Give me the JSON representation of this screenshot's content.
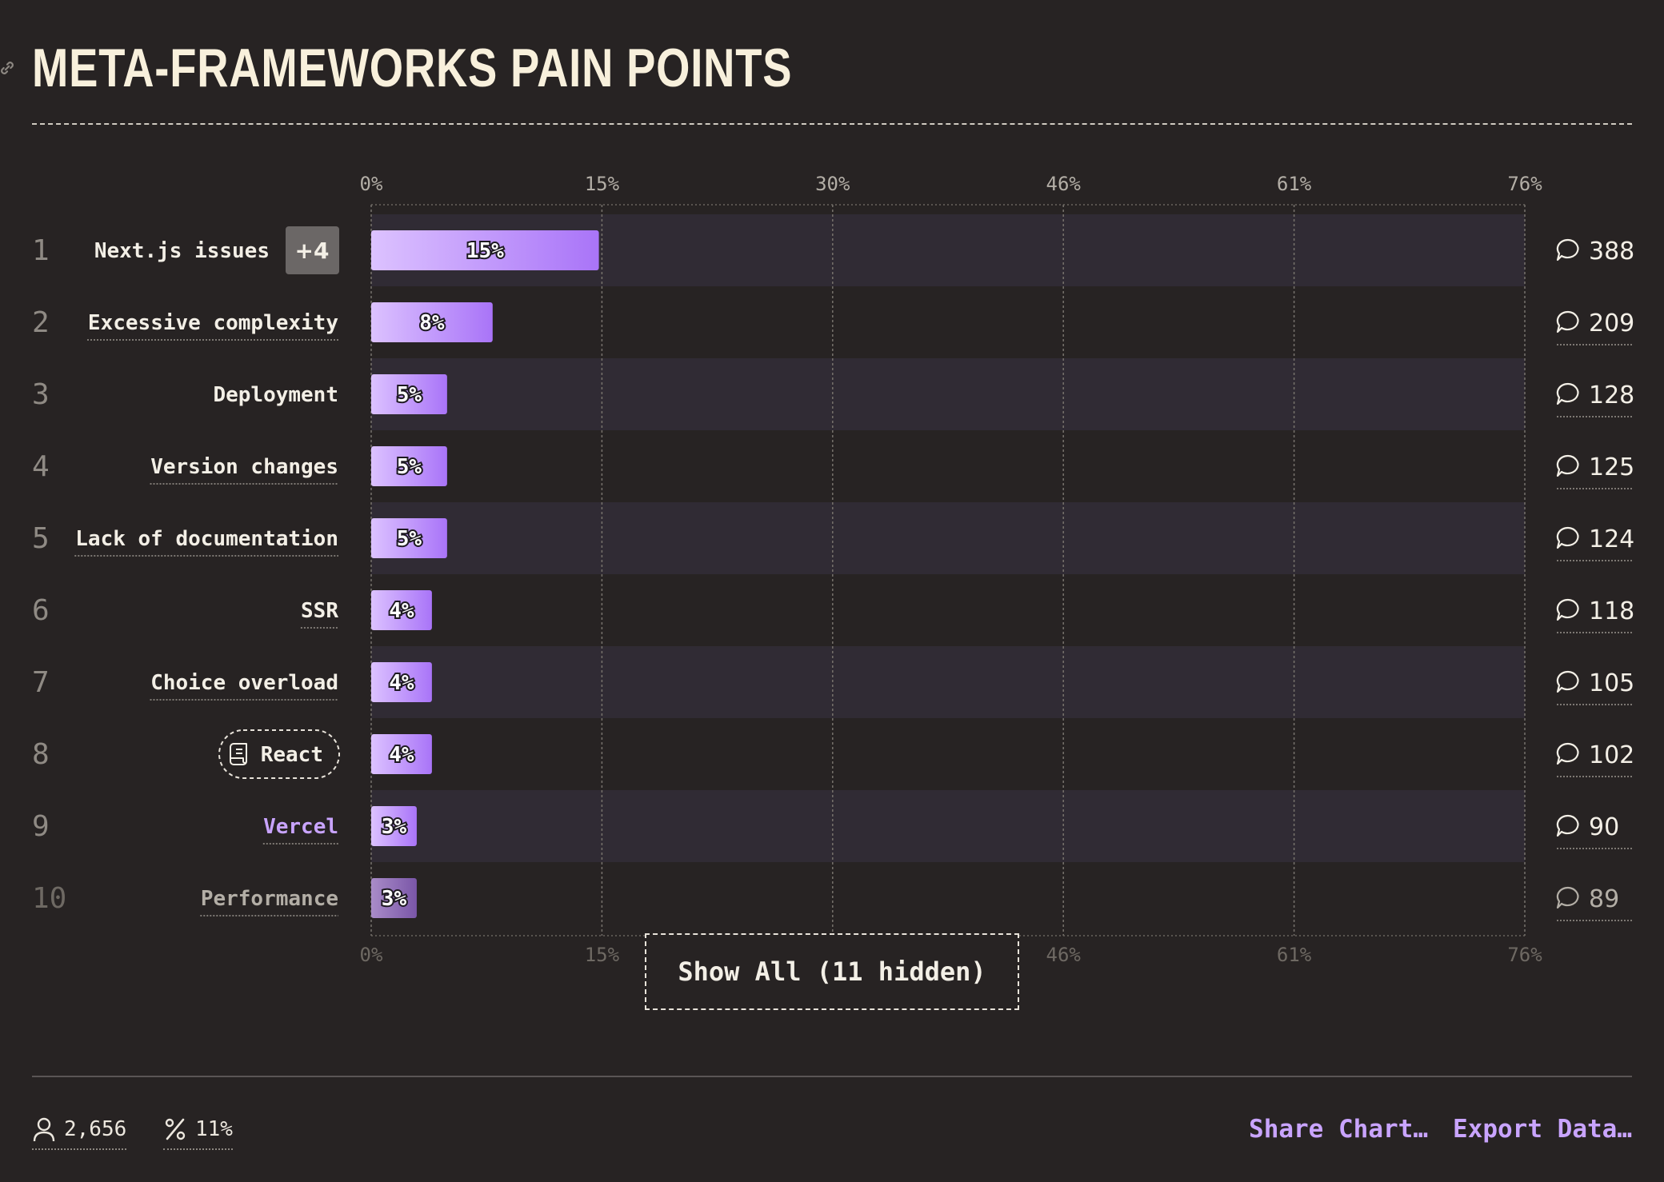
{
  "title": "META-FRAMEWORKS PAIN POINTS",
  "show_all_label": "Show All (11 hidden)",
  "footer": {
    "respondents": "2,656",
    "percent": "11%",
    "share_label": "Share Chart…",
    "export_label": "Export Data…"
  },
  "colors": {
    "background": "#272323",
    "row_stripe": "#302b34",
    "bar_start": "#dcc2ff",
    "bar_end": "#a974f8",
    "accent": "#c9a4ff"
  },
  "chart_data": {
    "type": "bar",
    "orientation": "horizontal",
    "title": "META-FRAMEWORKS PAIN POINTS",
    "x_ticks": [
      "0%",
      "15%",
      "30%",
      "46%",
      "61%",
      "76%"
    ],
    "xlim": [
      0,
      76
    ],
    "grid": true,
    "categories": [
      {
        "rank": "1",
        "label": "Next.js issues",
        "badge": "+4",
        "style": "badge",
        "value": 15,
        "value_label": "15%",
        "comments": "388"
      },
      {
        "rank": "2",
        "label": "Excessive complexity",
        "style": "underline",
        "value": 8,
        "value_label": "8%",
        "comments": "209"
      },
      {
        "rank": "3",
        "label": "Deployment",
        "style": "plain",
        "value": 5,
        "value_label": "5%",
        "comments": "128"
      },
      {
        "rank": "4",
        "label": "Version changes",
        "style": "underline",
        "value": 5,
        "value_label": "5%",
        "comments": "125"
      },
      {
        "rank": "5",
        "label": "Lack of documentation",
        "style": "underline",
        "value": 5,
        "value_label": "5%",
        "comments": "124"
      },
      {
        "rank": "6",
        "label": "SSR",
        "style": "underline",
        "value": 4,
        "value_label": "4%",
        "comments": "118"
      },
      {
        "rank": "7",
        "label": "Choice overload",
        "style": "underline",
        "value": 4,
        "value_label": "4%",
        "comments": "105"
      },
      {
        "rank": "8",
        "label": "React",
        "style": "pill",
        "value": 4,
        "value_label": "4%",
        "comments": "102"
      },
      {
        "rank": "9",
        "label": "Vercel",
        "style": "accent",
        "value": 3,
        "value_label": "3%",
        "comments": "90"
      },
      {
        "rank": "10",
        "label": "Performance",
        "style": "muted",
        "value": 3,
        "value_label": "3%",
        "comments": "89"
      }
    ]
  }
}
